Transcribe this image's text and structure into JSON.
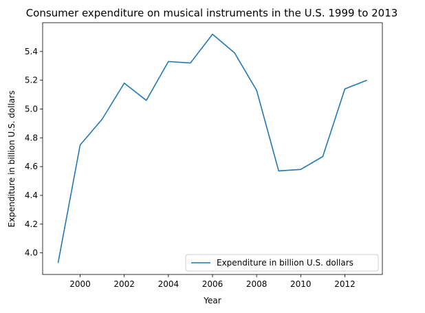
{
  "chart_data": {
    "type": "line",
    "title": "Consumer expenditure on musical instruments in the U.S. 1999 to 2013",
    "xlabel": "Year",
    "ylabel": "Expenditure in billion U.S. dollars",
    "xlim": [
      1998.3,
      2013.7
    ],
    "ylim": [
      3.85,
      5.6
    ],
    "x_ticks": [
      2000,
      2002,
      2004,
      2006,
      2008,
      2010,
      2012
    ],
    "y_ticks": [
      4.0,
      4.2,
      4.4,
      4.6,
      4.8,
      5.0,
      5.2,
      5.4
    ],
    "legend_position": "lower-right",
    "grid": false,
    "x": [
      1999,
      2000,
      2001,
      2002,
      2003,
      2004,
      2005,
      2006,
      2007,
      2008,
      2009,
      2010,
      2011,
      2012,
      2013
    ],
    "series": [
      {
        "name": "Expenditure in billion U.S. dollars",
        "color": "#1f77b4",
        "values": [
          3.93,
          4.75,
          4.93,
          5.18,
          5.06,
          5.33,
          5.32,
          5.52,
          5.39,
          5.13,
          4.57,
          4.58,
          4.67,
          5.14,
          5.2
        ]
      }
    ]
  }
}
